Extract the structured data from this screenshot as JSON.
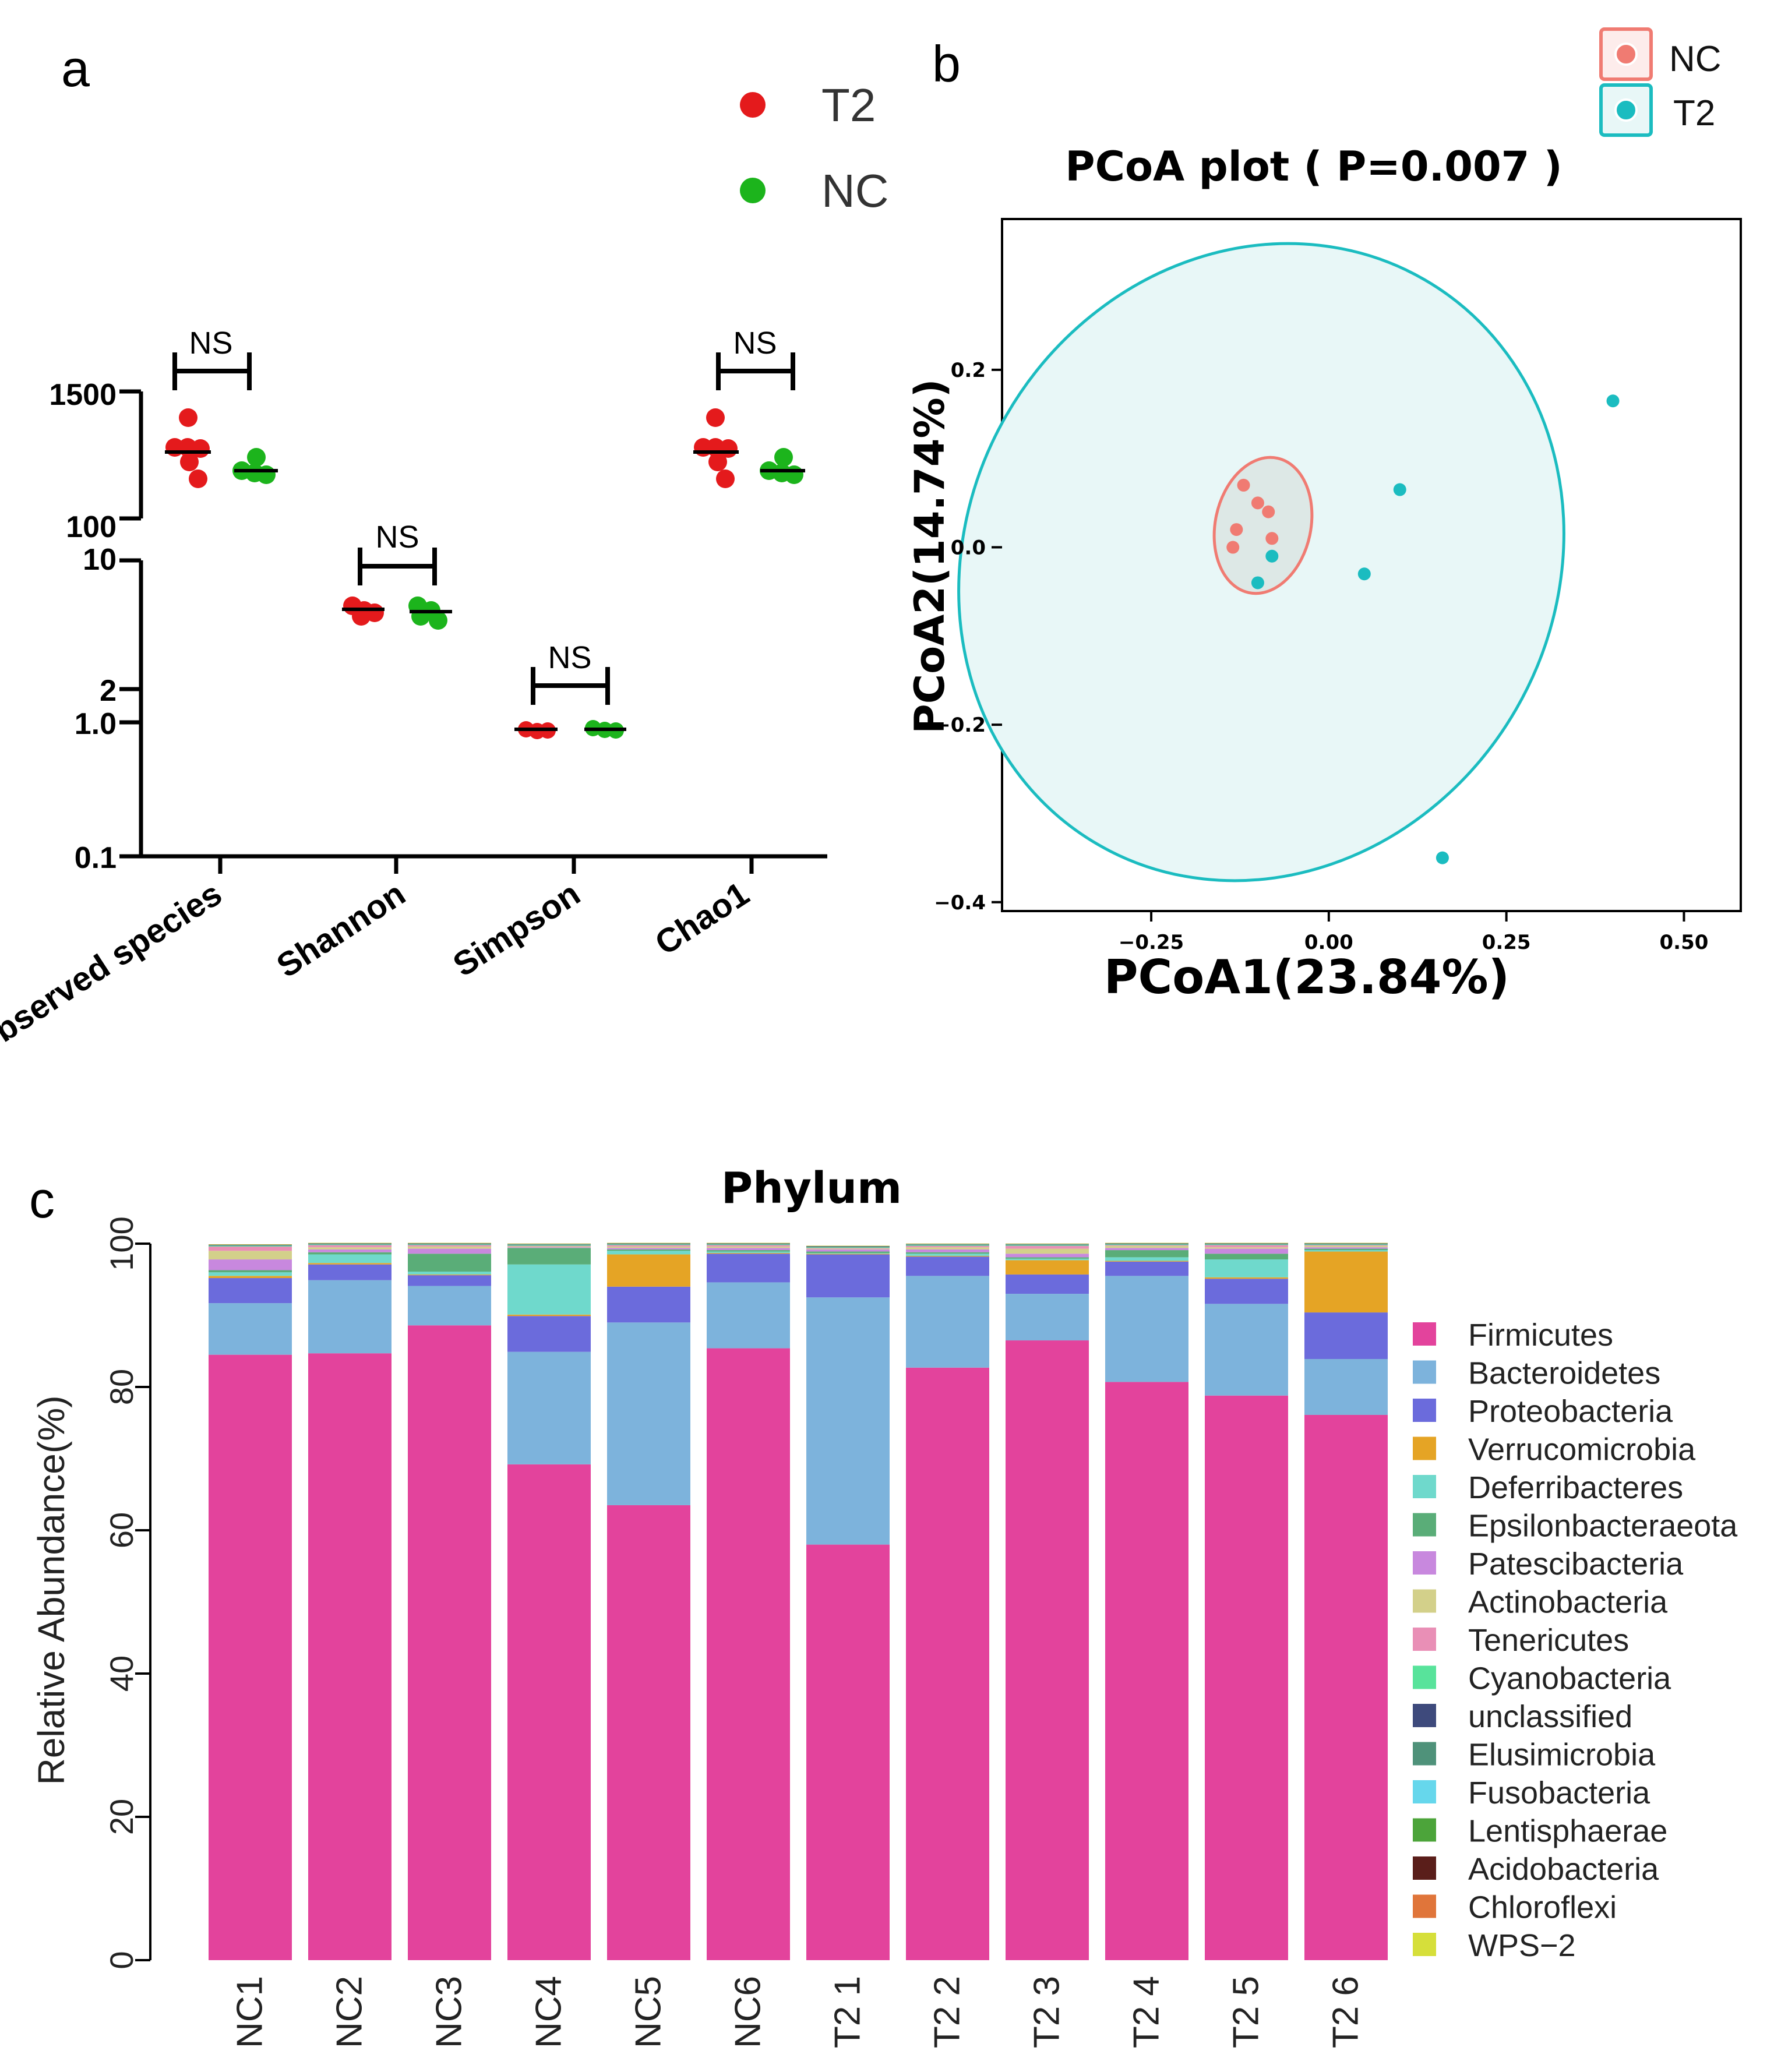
{
  "panels": [
    {
      "letter": "a"
    },
    {
      "letter": "b"
    },
    {
      "letter": "c"
    }
  ],
  "chart_data": [
    {
      "panel": "a",
      "type": "scatter",
      "title": "",
      "xlabel": "",
      "ylabel": "",
      "categories": [
        "Observed species",
        "Shannon",
        "Simpson",
        "Chao1"
      ],
      "legend": [
        {
          "name": "T2",
          "color": "#e41a1c"
        },
        {
          "name": "NC",
          "color": "#1cb41c"
        }
      ],
      "yticks": [
        "0.1",
        "1.0",
        "2",
        "10",
        "100",
        "1500"
      ],
      "significance": [
        "NS",
        "NS",
        "NS",
        "NS"
      ],
      "series": [
        {
          "name": "T2",
          "color": "#e41a1c",
          "medians": [
            760,
            5.6,
            0.95,
            760
          ]
        },
        {
          "name": "NC",
          "color": "#1cb41c",
          "medians": [
            560,
            5.4,
            0.95,
            560
          ]
        }
      ]
    },
    {
      "panel": "b",
      "type": "scatter",
      "title": "PCoA plot ( P=0.007 )",
      "xlabel": "PCoA1(23.84%)",
      "ylabel": "PCoA2(14.74%)",
      "xlim": [
        -0.46,
        0.58
      ],
      "ylim": [
        -0.41,
        0.37
      ],
      "xticks": [
        -0.25,
        0.0,
        0.25,
        0.5
      ],
      "xtick_labels": [
        "−0.25",
        "0.00",
        "0.25",
        "0.50"
      ],
      "yticks": [
        -0.4,
        -0.2,
        0.0,
        0.2
      ],
      "ytick_labels": [
        "−0.4",
        "−0.2",
        "0.0",
        "0.2"
      ],
      "legend": [
        {
          "name": "NC",
          "color": "#f07b72"
        },
        {
          "name": "T2",
          "color": "#1bbcc0"
        }
      ],
      "series": [
        {
          "name": "NC",
          "color": "#f07b72",
          "x": [
            -0.12,
            -0.1,
            -0.085,
            -0.13,
            -0.135,
            -0.08
          ],
          "y": [
            0.07,
            0.05,
            0.04,
            0.02,
            0.0,
            0.01
          ]
        },
        {
          "name": "T2",
          "color": "#1bbcc0",
          "x": [
            0.4,
            0.1,
            0.05,
            -0.08,
            -0.1,
            0.16
          ],
          "y": [
            0.165,
            0.065,
            -0.03,
            -0.01,
            -0.04,
            -0.35
          ]
        }
      ]
    },
    {
      "panel": "c",
      "type": "bar",
      "stacked": true,
      "title": "Phylum",
      "xlabel": "",
      "ylabel": "Relative Abundance(%)",
      "ylim": [
        0,
        100
      ],
      "yticks": [
        "0",
        "20",
        "40",
        "60",
        "80",
        "100"
      ],
      "categories": [
        "NC1",
        "NC2",
        "NC3",
        "NC4",
        "NC5",
        "NC6",
        "T2 1",
        "T2 2",
        "T2 3",
        "T2 4",
        "T2 5",
        "T2 6"
      ],
      "series": [
        {
          "name": "Firmicutes",
          "color": "#e3439c",
          "values": [
            84.5,
            84.7,
            88.6,
            69.2,
            63.5,
            85.4,
            58,
            82.7,
            86.5,
            80.7,
            78.8,
            76.1
          ]
        },
        {
          "name": "Bacteroidetes",
          "color": "#7db3dc",
          "values": [
            7.2,
            10.2,
            5.5,
            15.7,
            25.5,
            9.2,
            34.5,
            12.8,
            6.5,
            14.8,
            12.8,
            7.8
          ]
        },
        {
          "name": "Proteobacteria",
          "color": "#6b6bdc",
          "values": [
            3.5,
            2.2,
            1.5,
            5.0,
            5.0,
            4.0,
            6.0,
            2.7,
            2.7,
            2.0,
            3.5,
            6.5
          ]
        },
        {
          "name": "Verrucomicrobia",
          "color": "#e5a425",
          "values": [
            0.3,
            0.2,
            0.1,
            0.2,
            4.5,
            0.1,
            0.1,
            0.1,
            2.0,
            0.1,
            0.2,
            8.5
          ]
        },
        {
          "name": "Deferribacteres",
          "color": "#6fd9cc",
          "values": [
            0.5,
            1.2,
            0.4,
            7.0,
            0.5,
            0.2,
            0.1,
            0.3,
            0.2,
            0.5,
            2.5,
            0.2
          ]
        },
        {
          "name": "Epsilonbacteraeota",
          "color": "#5aad78",
          "values": [
            0.3,
            0.3,
            2.5,
            2.3,
            0.2,
            0.2,
            0.2,
            0.2,
            0.2,
            1.0,
            0.8,
            0.2
          ]
        },
        {
          "name": "Patescibacteria",
          "color": "#c888de",
          "values": [
            1.5,
            0.4,
            0.7,
            0.1,
            0.2,
            0.3,
            0.3,
            0.4,
            0.5,
            0.3,
            0.7,
            0.2
          ]
        },
        {
          "name": "Actinobacteria",
          "color": "#d3d08a",
          "values": [
            1.2,
            0.3,
            0.3,
            0.1,
            0.2,
            0.2,
            0.1,
            0.3,
            0.7,
            0.3,
            0.2,
            0.2
          ]
        },
        {
          "name": "Tenericutes",
          "color": "#e98fb6",
          "values": [
            0.6,
            0.3,
            0.2,
            0.1,
            0.2,
            0.2,
            0.1,
            0.2,
            0.4,
            0.1,
            0.3,
            0.1
          ]
        },
        {
          "name": "Cyanobacteria",
          "color": "#58e39b",
          "values": [
            0.1,
            0.1,
            0.1,
            0.1,
            0.1,
            0.1,
            0.1,
            0.1,
            0.1,
            0.1,
            0.1,
            0.1
          ]
        },
        {
          "name": "unclassified",
          "color": "#3e4a7c",
          "values": [
            0.05,
            0.05,
            0.05,
            0.05,
            0.05,
            0.05,
            0.05,
            0.05,
            0.05,
            0.05,
            0.05,
            0.05
          ]
        },
        {
          "name": "Elusimicrobia",
          "color": "#4f927a",
          "values": [
            0.05,
            0.05,
            0.05,
            0.05,
            0.05,
            0.05,
            0.05,
            0.05,
            0.05,
            0.05,
            0.05,
            0.05
          ]
        },
        {
          "name": "Fusobacteria",
          "color": "#66d7ec",
          "values": [
            0.03,
            0.03,
            0.03,
            0.03,
            0.03,
            0.03,
            0.03,
            0.03,
            0.03,
            0.03,
            0.03,
            0.03
          ]
        },
        {
          "name": "Lentisphaerae",
          "color": "#4ca43a",
          "values": [
            0.03,
            0.03,
            0.03,
            0.03,
            0.03,
            0.03,
            0.03,
            0.03,
            0.03,
            0.03,
            0.03,
            0.03
          ]
        },
        {
          "name": "Acidobacteria",
          "color": "#5a1e1a",
          "values": [
            0.02,
            0.02,
            0.02,
            0.02,
            0.02,
            0.02,
            0.02,
            0.02,
            0.02,
            0.02,
            0.02,
            0.02
          ]
        },
        {
          "name": "Chloroflexi",
          "color": "#e0753a",
          "values": [
            0.02,
            0.02,
            0.02,
            0.02,
            0.02,
            0.02,
            0.02,
            0.02,
            0.02,
            0.02,
            0.02,
            0.02
          ]
        },
        {
          "name": "WPS−2",
          "color": "#d6df3a",
          "values": [
            0.01,
            0.01,
            0.01,
            0.01,
            0.01,
            0.01,
            0.01,
            0.01,
            0.01,
            0.01,
            0.01,
            0.01
          ]
        }
      ]
    }
  ]
}
